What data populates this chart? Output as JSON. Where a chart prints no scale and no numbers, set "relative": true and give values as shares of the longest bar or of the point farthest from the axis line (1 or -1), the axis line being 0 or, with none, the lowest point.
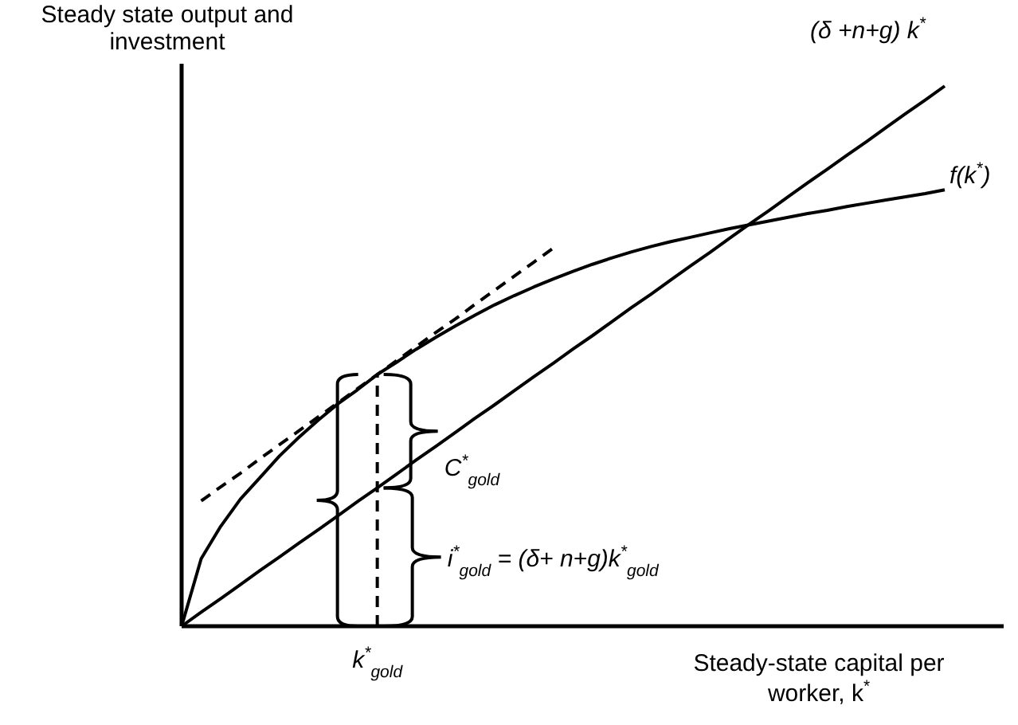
{
  "chart_data": {
    "type": "line",
    "relative": true,
    "ylabel": "Steady state output and investment",
    "xlabel": "Steady-state capital per worker, k$^{*}$",
    "categories": [
      null,
      null,
      null,
      null,
      null,
      null,
      null,
      null,
      null,
      null,
      null,
      null,
      null,
      null,
      null,
      null,
      null,
      null,
      null,
      null,
      null,
      null,
      null,
      null,
      null,
      null,
      null,
      null,
      null,
      null,
      null,
      null,
      null,
      null,
      null,
      null,
      null,
      null,
      null,
      null
    ],
    "series": [
      {
        "name": "(δ +n+g)  k$^{*}$",
        "color": "#000000",
        "line_style": "solid",
        "values": [
          0,
          0.026,
          0.051,
          0.077,
          0.103,
          0.128,
          0.154,
          0.179,
          0.205,
          0.231,
          0.256,
          0.282,
          0.308,
          0.333,
          0.359,
          0.385,
          0.41,
          0.436,
          0.462,
          0.487,
          0.513,
          0.538,
          0.564,
          0.59,
          0.615,
          0.641,
          0.667,
          0.692,
          0.718,
          0.744,
          0.769,
          0.795,
          0.821,
          0.846,
          0.872,
          0.897,
          0.923,
          0.949,
          0.974,
          1
        ]
      },
      {
        "name": "f(k$^{*}$)",
        "color": "#000000",
        "line_style": "solid",
        "values": [
          0,
          0.125,
          0.185,
          0.235,
          0.275,
          0.315,
          0.35,
          0.382,
          0.412,
          0.438,
          0.466,
          0.489,
          0.513,
          0.535,
          0.556,
          0.576,
          0.595,
          0.612,
          0.628,
          0.643,
          0.657,
          0.67,
          0.682,
          0.693,
          0.703,
          0.712,
          0.72,
          0.728,
          0.736,
          0.743,
          0.75,
          0.757,
          0.764,
          0.77,
          0.777,
          0.783,
          0.789,
          0.795,
          0.801,
          0.808
        ]
      },
      {
        "color": "#000000",
        "line_style": "dashed",
        "values": [
          null,
          0.232,
          0.258,
          0.283,
          0.31,
          0.336,
          0.362,
          0.388,
          0.414,
          0.44,
          0.466,
          0.492,
          0.518,
          0.544,
          0.569,
          0.596,
          0.622,
          0.648,
          0.674,
          0.7,
          null,
          null,
          null,
          null,
          null,
          null,
          null,
          null,
          null,
          null,
          null,
          null,
          null,
          null,
          null,
          null,
          null,
          null,
          null,
          null
        ]
      }
    ],
    "ref_lines": [
      {
        "axis": "x",
        "label": "k$^{*}$$_{gold}$",
        "color": "#000000",
        "line_style": "dashed"
      }
    ],
    "annotations": [
      "C$^{*}$$_{gold}$",
      "i$^{*}$$_{gold}$ = (δ+ n+g)k$^{*}$$_{gold}$"
    ]
  }
}
